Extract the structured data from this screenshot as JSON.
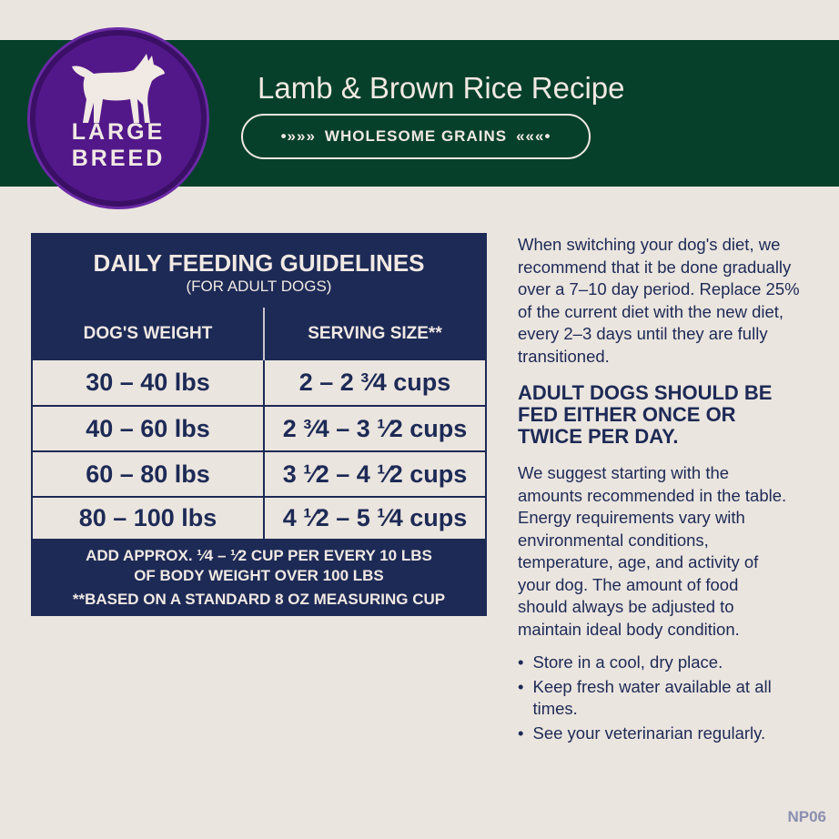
{
  "header": {
    "badge": {
      "line1": "LARGE",
      "line2": "BREED",
      "icon": "dog-silhouette-icon"
    },
    "title": "Lamb & Brown Rice Recipe",
    "tag": "WHOLESOME GRAINS",
    "colors": {
      "band": "#06402b",
      "badge": "#52188a",
      "navy": "#1d2a56"
    }
  },
  "table": {
    "title": "DAILY FEEDING GUIDELINES",
    "subtitle": "(FOR ADULT DOGS)",
    "col1": "DOG'S WEIGHT",
    "col2": "SERVING SIZE**",
    "rows": [
      {
        "weight": "30 – 40 lbs",
        "serving": "2 – 2 ³⁄4 cups"
      },
      {
        "weight": "40 – 60 lbs",
        "serving": "2 ³⁄4 – 3 ¹⁄2 cups"
      },
      {
        "weight": "60 – 80 lbs",
        "serving": "3 ¹⁄2 – 4 ¹⁄2 cups"
      },
      {
        "weight": "80 – 100 lbs",
        "serving": "4 ¹⁄2 – 5 ¹⁄4 cups"
      }
    ],
    "note1": "ADD APPROX. ¹⁄4 – ¹⁄2 CUP PER EVERY 10 LBS",
    "note2": "OF BODY WEIGHT OVER 100 LBS",
    "note3": "**BASED ON A STANDARD 8 OZ MEASURING CUP"
  },
  "info": {
    "p1": "When switching your dog's diet, we recommend that it be done gradually over a 7–10 day period. Replace 25% of the current diet with the new diet, every 2–3 days until they are fully transitioned.",
    "heading": "ADULT DOGS SHOULD BE FED EITHER ONCE OR TWICE PER DAY.",
    "p2": "We suggest starting with the amounts recommended in the table. Energy requirements vary with environmental conditions, temperature, age, and activity of your dog. The amount of food should always be adjusted to maintain ideal body condition.",
    "bullets": [
      "Store in a cool, dry place.",
      "Keep fresh water available at all times.",
      "See your veterinarian regularly."
    ]
  },
  "code": "NP06"
}
